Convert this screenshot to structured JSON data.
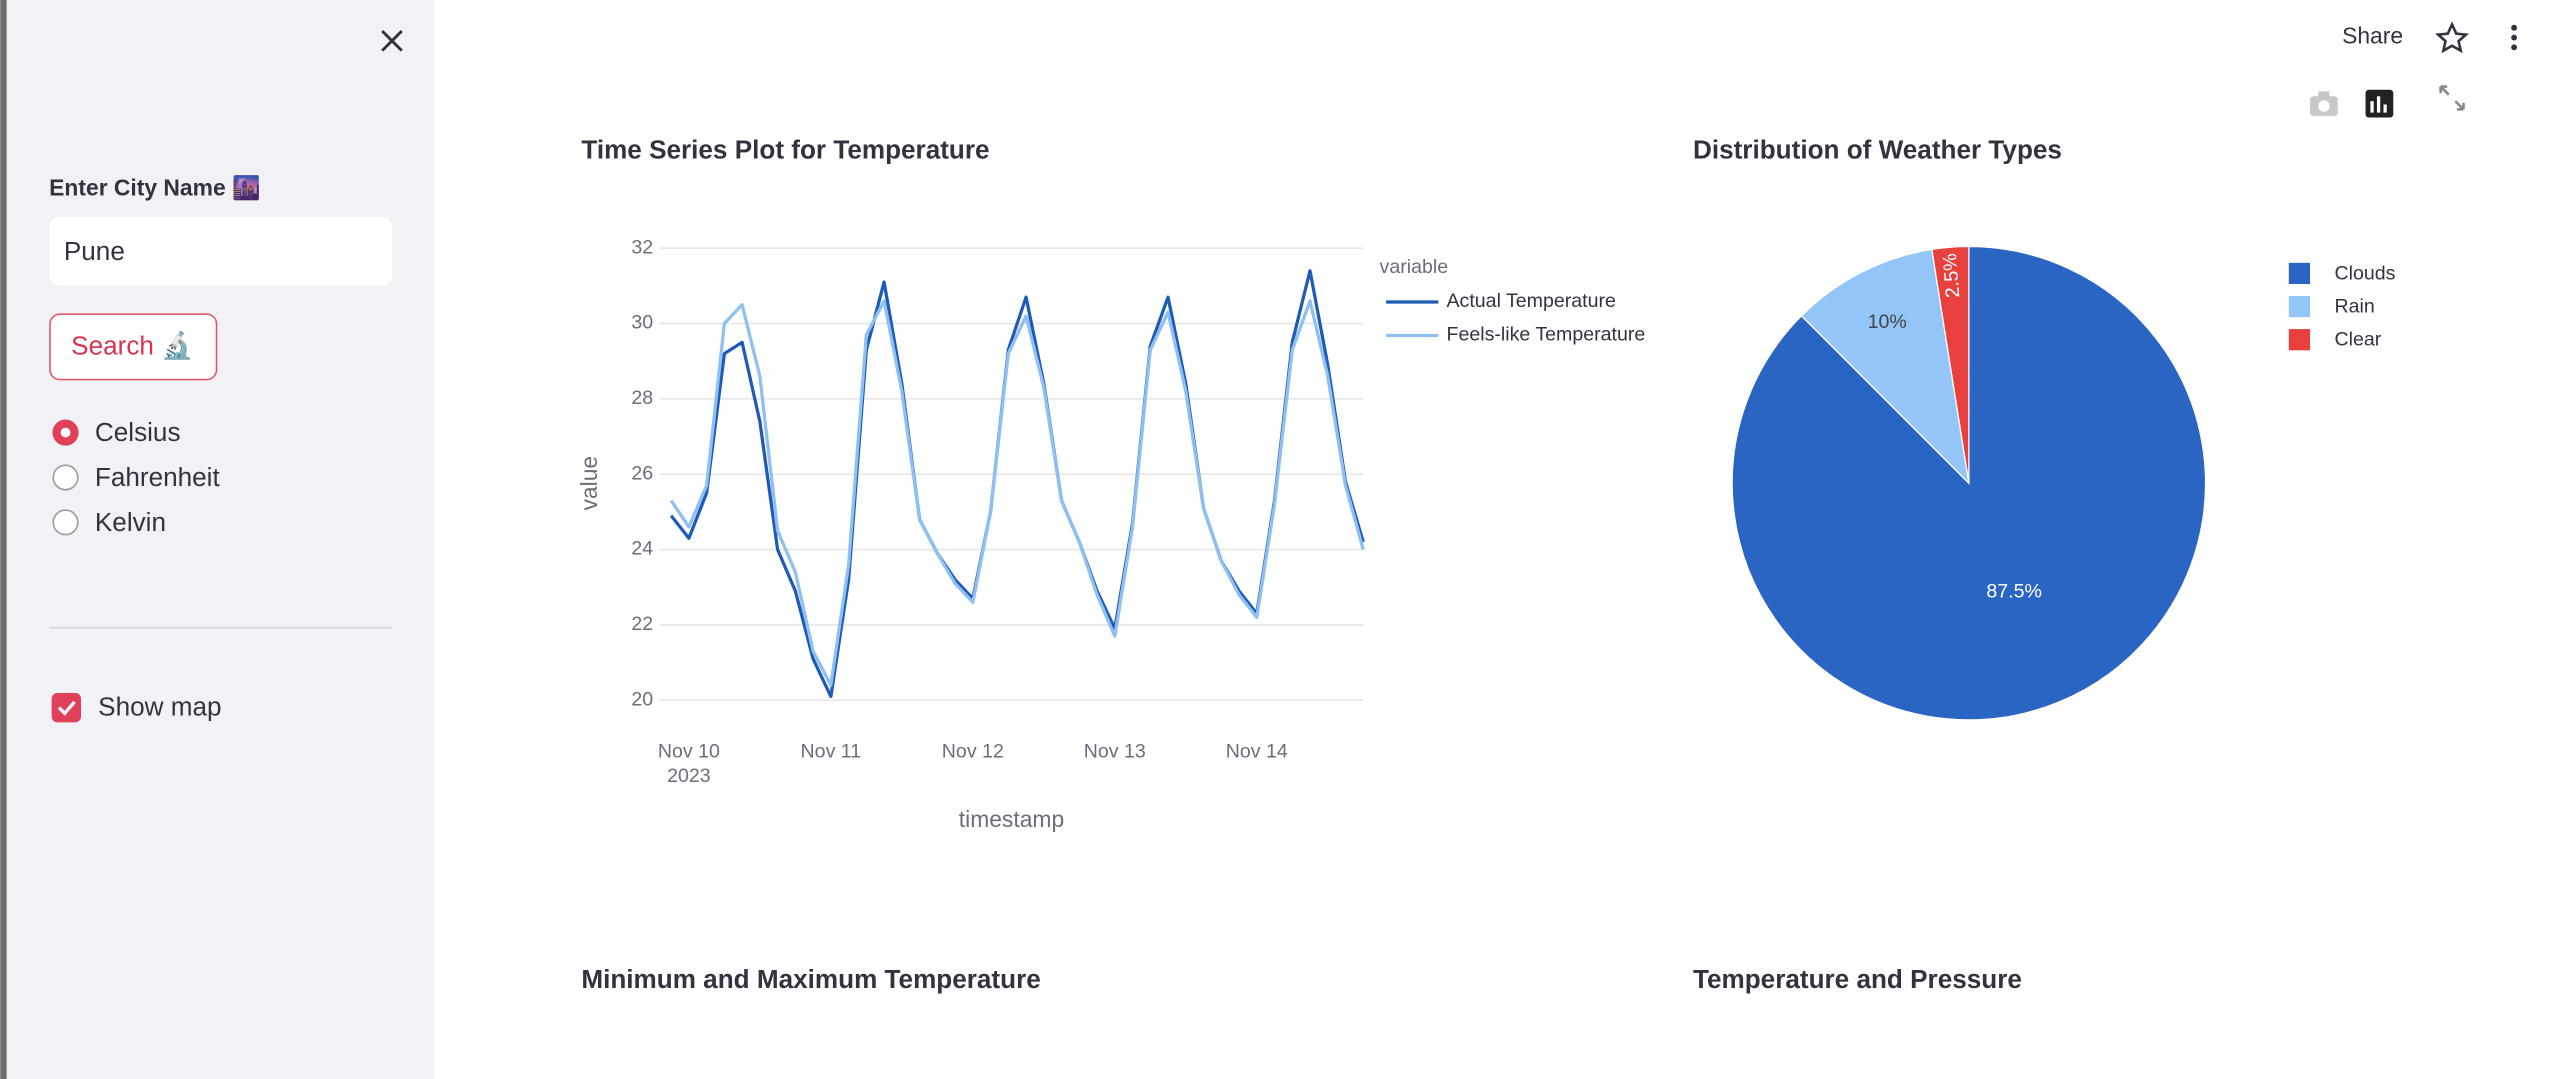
{
  "sidebar": {
    "city_label": "Enter City Name 🌆",
    "city_value": "Pune",
    "search_button": "Search 🔬",
    "units": {
      "options": [
        "Celsius",
        "Fahrenheit",
        "Kelvin"
      ],
      "selected": 0
    },
    "show_map": {
      "label": "Show map",
      "checked": true
    }
  },
  "header": {
    "share": "Share"
  },
  "section_titles": [
    "Minimum and Maximum Temperature",
    "Temperature and Pressure"
  ],
  "chart_data": [
    {
      "type": "line",
      "title": "Time Series Plot for Temperature",
      "xlabel": "timestamp",
      "ylabel": "value",
      "legend_title": "variable",
      "x": [
        "2023-11-09T21:00",
        "2023-11-10T00:00",
        "2023-11-10T03:00",
        "2023-11-10T06:00",
        "2023-11-10T09:00",
        "2023-11-10T12:00",
        "2023-11-10T15:00",
        "2023-11-10T18:00",
        "2023-11-10T21:00",
        "2023-11-11T00:00",
        "2023-11-11T03:00",
        "2023-11-11T06:00",
        "2023-11-11T09:00",
        "2023-11-11T12:00",
        "2023-11-11T15:00",
        "2023-11-11T18:00",
        "2023-11-11T21:00",
        "2023-11-12T00:00",
        "2023-11-12T03:00",
        "2023-11-12T06:00",
        "2023-11-12T09:00",
        "2023-11-12T12:00",
        "2023-11-12T15:00",
        "2023-11-12T18:00",
        "2023-11-12T21:00",
        "2023-11-13T00:00",
        "2023-11-13T03:00",
        "2023-11-13T06:00",
        "2023-11-13T09:00",
        "2023-11-13T12:00",
        "2023-11-13T15:00",
        "2023-11-13T18:00",
        "2023-11-13T21:00",
        "2023-11-14T00:00",
        "2023-11-14T03:00",
        "2023-11-14T06:00",
        "2023-11-14T09:00",
        "2023-11-14T12:00",
        "2023-11-14T15:00",
        "2023-11-14T18:00"
      ],
      "series": [
        {
          "name": "Actual Temperature",
          "color": "#1f5ab8",
          "values": [
            24.9,
            24.3,
            25.5,
            29.2,
            29.5,
            27.4,
            24.0,
            22.9,
            21.1,
            20.1,
            23.2,
            29.3,
            31.1,
            28.4,
            24.8,
            23.9,
            23.2,
            22.7,
            25.0,
            29.3,
            30.7,
            28.4,
            25.3,
            24.2,
            22.9,
            21.9,
            24.7,
            29.4,
            30.7,
            28.4,
            25.1,
            23.7,
            22.9,
            22.3,
            25.3,
            29.5,
            31.4,
            28.9,
            25.8,
            24.2
          ]
        },
        {
          "name": "Feels-like Temperature",
          "color": "#8ec0f2",
          "values": [
            25.3,
            24.6,
            25.7,
            30.0,
            30.5,
            28.6,
            24.5,
            23.4,
            21.3,
            20.4,
            23.6,
            29.7,
            30.6,
            28.2,
            24.8,
            23.9,
            23.1,
            22.6,
            25.0,
            29.2,
            30.2,
            28.3,
            25.3,
            24.2,
            22.8,
            21.7,
            24.6,
            29.3,
            30.3,
            28.2,
            25.1,
            23.7,
            22.8,
            22.2,
            25.2,
            29.3,
            30.6,
            28.6,
            25.7,
            24.0
          ]
        }
      ],
      "xlim": [
        "2023-11-09T21:00",
        "2023-11-14T18:00"
      ],
      "xticks": [
        {
          "value": "2023-11-10T00:00",
          "label": "Nov 10\n2023"
        },
        {
          "value": "2023-11-11T00:00",
          "label": "Nov 11"
        },
        {
          "value": "2023-11-12T00:00",
          "label": "Nov 12"
        },
        {
          "value": "2023-11-13T00:00",
          "label": "Nov 13"
        },
        {
          "value": "2023-11-14T00:00",
          "label": "Nov 14"
        }
      ],
      "ylim": [
        19.5,
        32.5
      ],
      "yticks": [
        20,
        22,
        24,
        26,
        28,
        30,
        32
      ],
      "grid": true
    },
    {
      "type": "pie",
      "title": "Distribution of Weather Types",
      "categories": [
        "Clouds",
        "Rain",
        "Clear"
      ],
      "values": [
        87.5,
        10,
        2.5
      ],
      "value_labels": [
        "87.5%",
        "10%",
        "2.5%"
      ],
      "colors": [
        "#2b65c3",
        "#93c5f9",
        "#e8403c"
      ]
    }
  ]
}
